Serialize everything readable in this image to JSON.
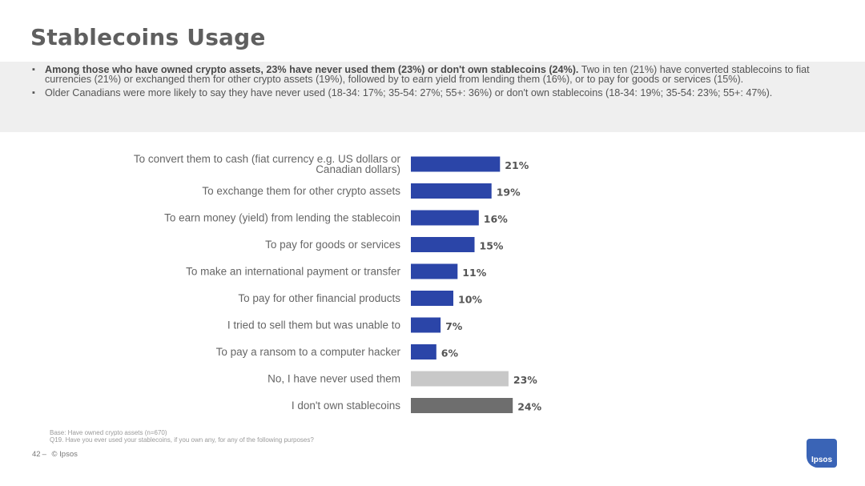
{
  "page": {
    "title": "Stablecoins Usage",
    "bullets": [
      {
        "bold": "Among those who have owned crypto assets, 23% have never used them (23%) or don't own stablecoins (24%).",
        "rest": " Two in ten (21%) have converted stablecoins to fiat currencies (21%) or exchanged them for other crypto assets (19%), followed by to earn yield from lending them (16%), or to pay for goods or services (15%)."
      },
      {
        "bold": "",
        "rest": "Older Canadians were more likely to say they have never used (18-34: 17%; 35-54: 27%; 55+: 36%) or don't own stablecoins (18-34: 19%; 35-54: 23%; 55+: 47%)."
      }
    ],
    "base_note": "Base: Have owned crypto assets (n=670)",
    "question_note": "Q19. Have you ever used your stablecoins, if you own any, for any of the following purposes?",
    "page_number": "42",
    "copyright": "© Ipsos",
    "logo_text": "Ipsos"
  },
  "chart_data": {
    "type": "bar",
    "orientation": "horizontal",
    "categories": [
      "To convert them to cash (fiat currency e.g. US dollars or Canadian dollars)",
      "To exchange them for other crypto assets",
      "To earn money (yield) from lending the stablecoin",
      "To pay for goods or services",
      "To make an international payment or transfer",
      "To pay for other financial products",
      "I tried to sell them but was unable to",
      "To pay a ransom to a computer hacker",
      "No, I have never used them",
      "I don't own stablecoins"
    ],
    "values": [
      21,
      19,
      16,
      15,
      11,
      10,
      7,
      6,
      23,
      24
    ],
    "value_labels": [
      "21%",
      "19%",
      "16%",
      "15%",
      "11%",
      "10%",
      "7%",
      "6%",
      "23%",
      "24%"
    ],
    "bar_colors": [
      "#2b45a8",
      "#2b45a8",
      "#2b45a8",
      "#2b45a8",
      "#2b45a8",
      "#2b45a8",
      "#2b45a8",
      "#2b45a8",
      "#c8c8c8",
      "#6e6e6e"
    ],
    "grid": false,
    "legend": "none"
  }
}
